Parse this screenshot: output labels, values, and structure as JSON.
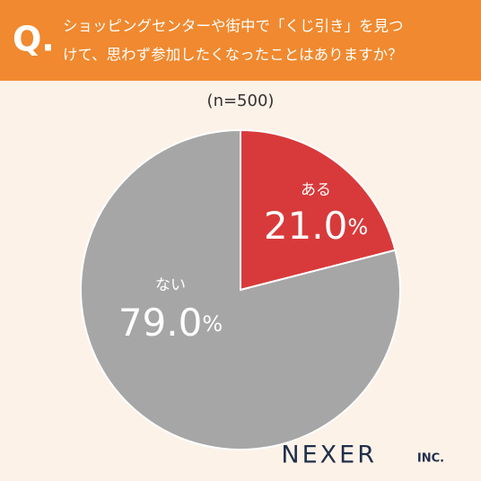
{
  "chart_data": {
    "type": "pie",
    "badge": "Q.",
    "title": [
      "ショッピングセンターや街中で「くじ引き」を見つ",
      "けて、思わず参加したくなったことはありますか？"
    ],
    "subtitle": "(n=500)",
    "categories": [
      "ある",
      "ない"
    ],
    "values": [
      21.0,
      79.0
    ],
    "value_labels": [
      "21.0%",
      "79.0%"
    ],
    "colors": [
      "#d83a3b",
      "#a6a6a6"
    ],
    "logo": {
      "name": "NEXER",
      "suffix": "INC."
    }
  }
}
